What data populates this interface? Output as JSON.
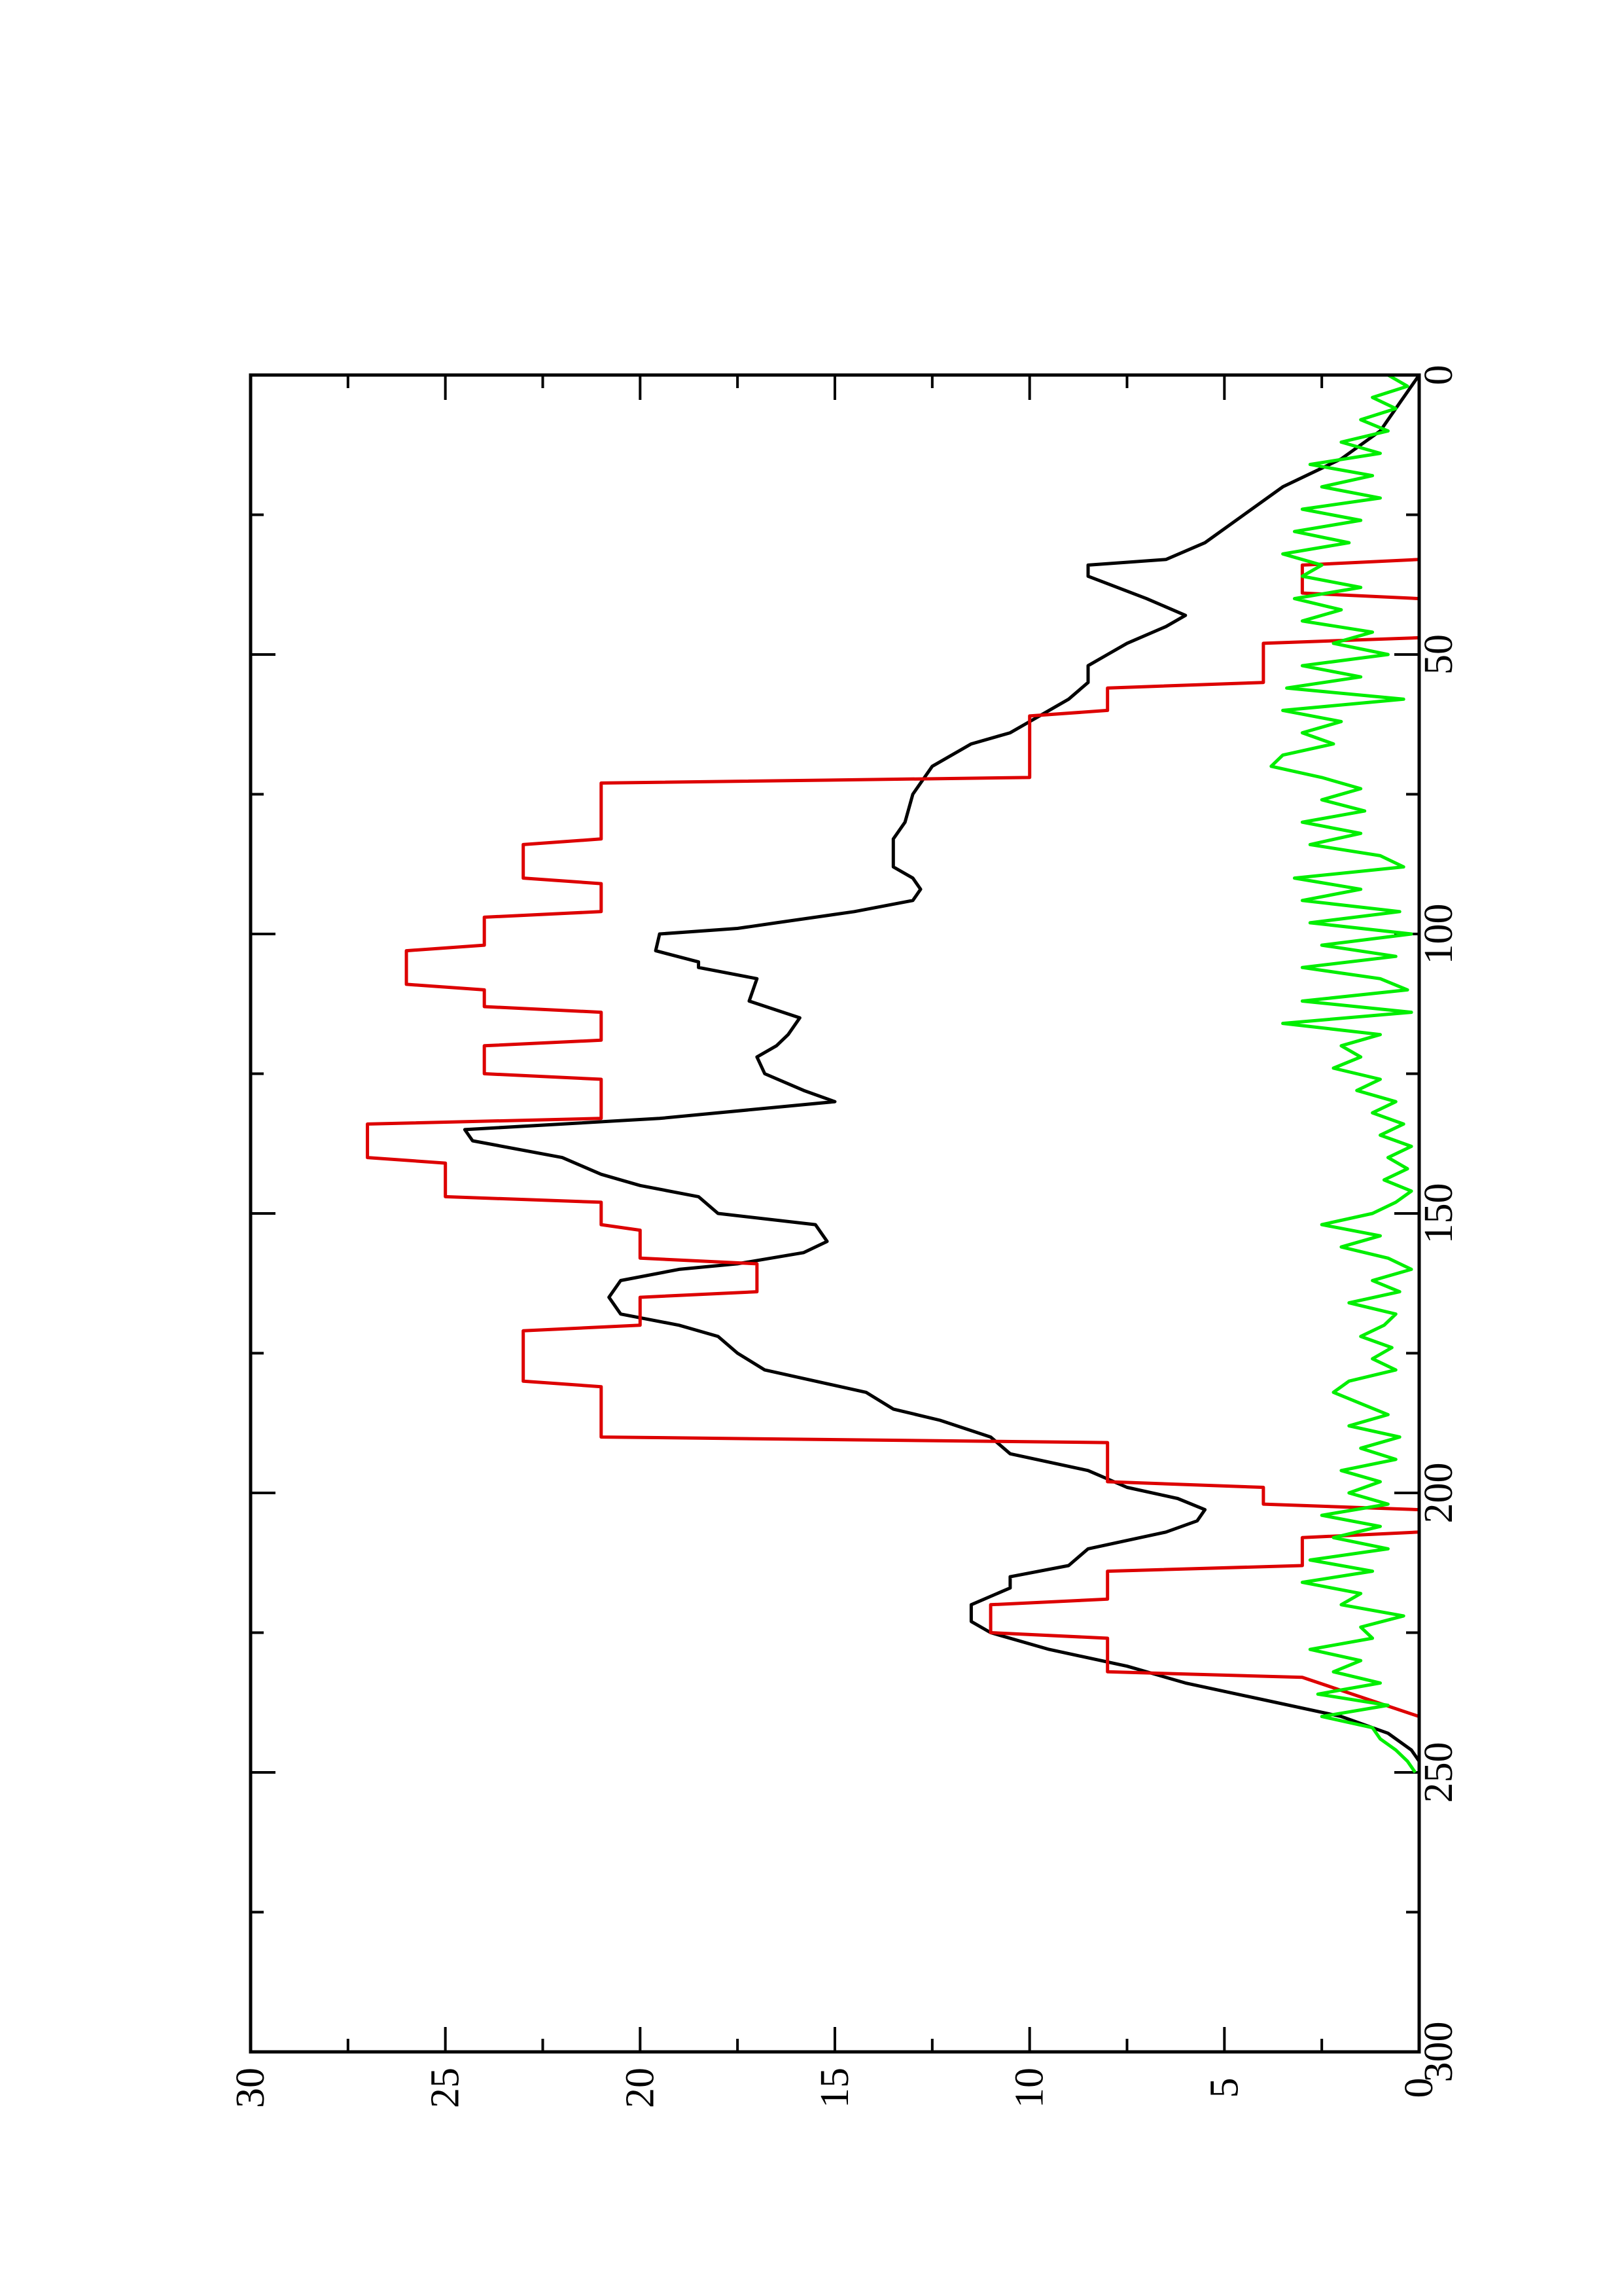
{
  "chart_data": {
    "type": "line",
    "title": "",
    "xlabel": "",
    "ylabel": "",
    "xlim": [
      0,
      300
    ],
    "ylim": [
      0,
      30
    ],
    "orientation": "rotated-90-counterclockwise",
    "x_ticks": [
      0,
      50,
      100,
      150,
      200,
      250,
      300
    ],
    "y_ticks": [
      0,
      5,
      10,
      15,
      20,
      25,
      30
    ],
    "grid": false,
    "legend": "none",
    "series": [
      {
        "color": "#000000",
        "x": [
          0,
          5,
          10,
          15,
          20,
          25,
          30,
          33,
          34,
          36,
          40,
          43,
          45,
          48,
          50,
          52,
          55,
          58,
          60,
          62,
          64,
          66,
          68,
          70,
          75,
          80,
          83,
          86,
          88,
          90,
          92,
          94,
          96,
          98,
          99,
          100,
          103,
          105,
          106,
          108,
          112,
          115,
          118,
          120,
          122,
          125,
          128,
          130,
          133,
          135,
          137,
          140,
          143,
          145,
          147,
          150,
          152,
          155,
          157,
          159,
          160,
          162,
          165,
          168,
          170,
          172,
          175,
          178,
          180,
          182,
          185,
          187,
          190,
          193,
          196,
          199,
          201,
          203,
          205,
          207,
          210,
          213,
          215,
          217,
          220,
          223,
          225,
          228,
          231,
          234,
          237,
          240,
          243,
          246,
          248,
          250
        ],
        "y": [
          0,
          0.5,
          1,
          2,
          3.5,
          4.5,
          5.5,
          6.5,
          8.5,
          8.5,
          7,
          6,
          6.5,
          7.5,
          8,
          8.5,
          8.5,
          9,
          9.5,
          10,
          10.5,
          11.5,
          12,
          12.5,
          13,
          13.2,
          13.5,
          13.5,
          13.5,
          13,
          12.8,
          13,
          14.5,
          16.5,
          17.5,
          19.5,
          19.6,
          18.5,
          18.5,
          17,
          17.2,
          15.9,
          16.2,
          16.5,
          17,
          16.8,
          15.8,
          15,
          19.5,
          24.5,
          24.3,
          22,
          21,
          20,
          18.5,
          18,
          15.5,
          15.2,
          15.8,
          17.5,
          19,
          20.5,
          20.8,
          20.5,
          19,
          18,
          17.5,
          16.8,
          15.5,
          14.2,
          13.5,
          12.3,
          11,
          10.5,
          8.5,
          7.5,
          6.2,
          5.5,
          5.7,
          6.5,
          8.5,
          9,
          10.5,
          10.5,
          11.5,
          11.5,
          11,
          9.5,
          7.5,
          6,
          4,
          2,
          0.8,
          0.2,
          0,
          0
        ]
      },
      {
        "color": "#dd0000",
        "x": [
          0,
          33,
          34,
          39,
          40,
          47,
          48,
          55,
          56,
          60,
          61,
          72,
          73,
          83,
          84,
          90,
          91,
          96,
          97,
          102,
          103,
          109,
          110,
          113,
          114,
          119,
          120,
          125,
          126,
          133,
          134,
          140,
          141,
          147,
          148,
          152,
          153,
          158,
          159,
          164,
          165,
          170,
          171,
          180,
          181,
          190,
          191,
          198,
          199,
          202,
          203,
          207,
          208,
          213,
          214,
          219,
          220,
          225,
          226,
          232,
          233,
          240
        ],
        "y": [
          0,
          0,
          3,
          3,
          0,
          0,
          4,
          4,
          8,
          8,
          10,
          10,
          21,
          21,
          23,
          23,
          21,
          21,
          24,
          24,
          26,
          26,
          24,
          24,
          21,
          21,
          24,
          24,
          21,
          21,
          27,
          27,
          25,
          25,
          21,
          21,
          20,
          20,
          17,
          17,
          20,
          20,
          23,
          23,
          21,
          21,
          8,
          8,
          4,
          4,
          0,
          0,
          3,
          3,
          8,
          8,
          11,
          11,
          8,
          8,
          3,
          0
        ]
      },
      {
        "color": "#00ee00",
        "x": [
          0,
          2,
          4,
          6,
          8,
          10,
          12,
          14,
          16,
          18,
          20,
          22,
          24,
          26,
          28,
          30,
          32,
          34,
          36,
          38,
          40,
          42,
          44,
          46,
          48,
          50,
          52,
          54,
          56,
          58,
          60,
          62,
          64,
          66,
          68,
          70,
          72,
          74,
          76,
          78,
          80,
          82,
          84,
          86,
          88,
          90,
          92,
          94,
          96,
          98,
          100,
          102,
          104,
          106,
          108,
          110,
          112,
          114,
          116,
          118,
          120,
          122,
          124,
          126,
          128,
          130,
          132,
          134,
          136,
          138,
          140,
          142,
          144,
          146,
          148,
          150,
          152,
          154,
          156,
          158,
          160,
          162,
          164,
          166,
          168,
          170,
          172,
          174,
          176,
          178,
          180,
          182,
          184,
          186,
          188,
          190,
          192,
          194,
          196,
          198,
          200,
          202,
          204,
          206,
          208,
          210,
          212,
          214,
          216,
          218,
          220,
          222,
          224,
          226,
          228,
          230,
          232,
          234,
          236,
          238,
          240,
          242,
          244,
          246,
          248,
          250
        ],
        "y": [
          0.8,
          0.3,
          1.2,
          0.6,
          1.5,
          0.8,
          2.0,
          1.0,
          2.8,
          1.2,
          2.5,
          1.0,
          3.0,
          1.5,
          3.2,
          1.8,
          3.5,
          2.5,
          3.0,
          1.5,
          3.2,
          2.0,
          3.0,
          1.2,
          2.2,
          0.8,
          3.0,
          1.5,
          3.4,
          0.4,
          3.5,
          2.0,
          3.0,
          2.2,
          3.5,
          3.8,
          2.5,
          1.5,
          2.5,
          1.4,
          3.0,
          1.5,
          2.8,
          1.0,
          0.4,
          3.2,
          1.5,
          3.0,
          0.5,
          2.8,
          0.2,
          2.5,
          0.6,
          3.0,
          1.0,
          0.3,
          3.0,
          0.2,
          3.5,
          1.0,
          2.0,
          1.5,
          2.2,
          1.0,
          1.6,
          0.6,
          1.2,
          0.4,
          1.0,
          0.2,
          0.8,
          0.3,
          0.9,
          0.2,
          0.6,
          1.2,
          2.5,
          1.0,
          2.0,
          0.8,
          0.2,
          1.2,
          0.5,
          1.8,
          0.6,
          0.9,
          1.5,
          0.7,
          1.2,
          0.6,
          1.8,
          2.2,
          1.5,
          0.8,
          1.8,
          0.5,
          1.5,
          0.6,
          2.0,
          1.0,
          1.8,
          0.8,
          2.5,
          1.0,
          2.2,
          0.8,
          2.8,
          1.2,
          3.0,
          1.5,
          2.0,
          0.4,
          1.5,
          1.2,
          2.8,
          1.5,
          2.2,
          1.0,
          2.6,
          0.8,
          2.5,
          1.2,
          1.0,
          0.6,
          0.3,
          0.1
        ]
      }
    ]
  }
}
